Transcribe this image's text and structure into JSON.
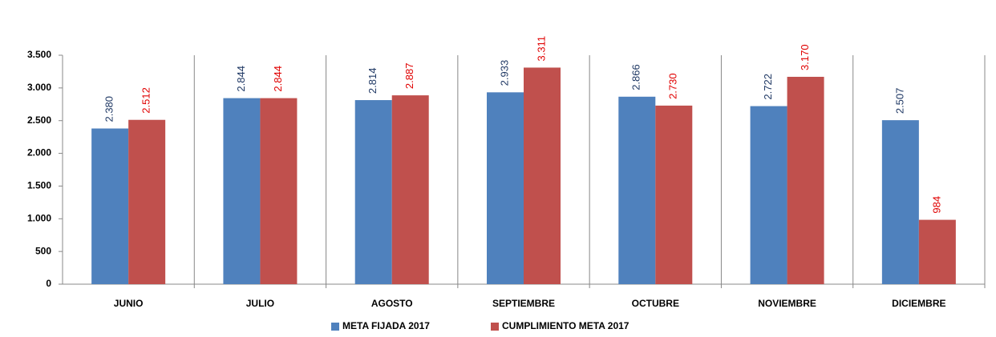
{
  "chart_data": {
    "type": "bar",
    "categories": [
      "JUNIO",
      "JULIO",
      "AGOSTO",
      "SEPTIEMBRE",
      "OCTUBRE",
      "NOVIEMBRE",
      "DICIEMBRE"
    ],
    "series": [
      {
        "name": "META FIJADA 2017",
        "color": "#4f81bd",
        "label_color": "#1f3864",
        "values": [
          2380,
          2844,
          2814,
          2933,
          2866,
          2722,
          2507
        ],
        "value_labels": [
          "2.380",
          "2.844",
          "2.814",
          "2.933",
          "2.866",
          "2.722",
          "2.507"
        ]
      },
      {
        "name": "CUMPLIMIENTO META 2017",
        "color": "#c0504d",
        "label_color": "#e00000",
        "values": [
          2512,
          2844,
          2887,
          3311,
          2730,
          3170,
          984
        ],
        "value_labels": [
          "2.512",
          "2.844",
          "2.887",
          "3.311",
          "2.730",
          "3.170",
          "984"
        ]
      }
    ],
    "ylim": [
      0,
      3500
    ],
    "yticks": [
      0,
      500,
      {
        "value": 1000,
        "label": "1.000"
      },
      {
        "value": 1500,
        "label": "1.500"
      },
      {
        "value": 2000,
        "label": "2.000"
      },
      {
        "value": 2500,
        "label": "2.500"
      },
      {
        "value": 3000,
        "label": "3.000"
      },
      {
        "value": 3500,
        "label": "3.500"
      }
    ],
    "category_separators": true,
    "legend": "bottom"
  }
}
